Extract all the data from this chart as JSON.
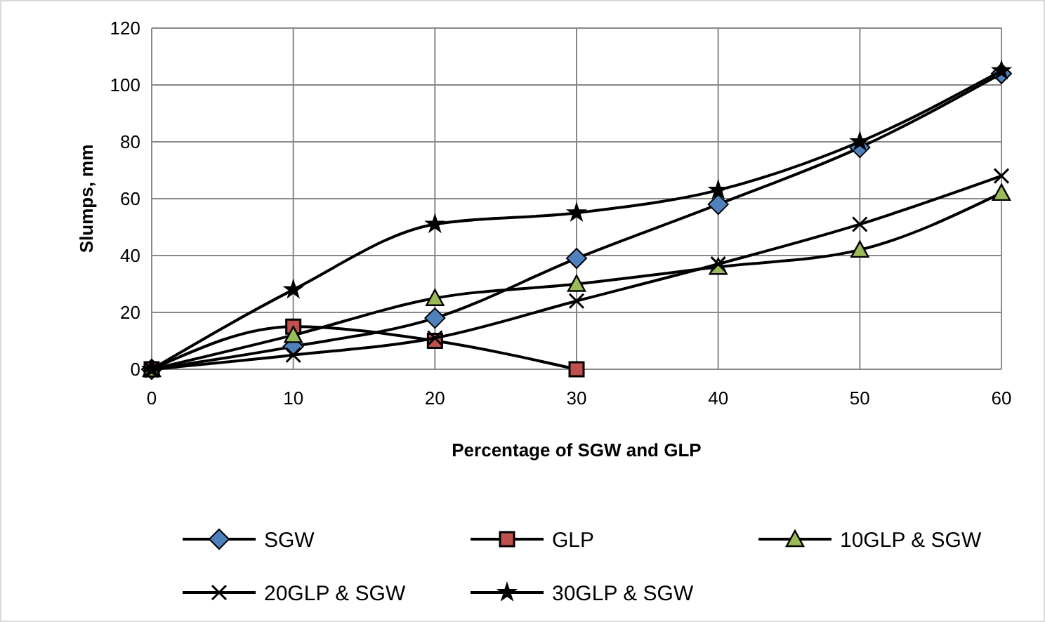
{
  "chart_data": {
    "type": "line",
    "xlabel": "Percentage of SGW and GLP",
    "ylabel": "Slumps, mm",
    "x": [
      0,
      10,
      20,
      30,
      40,
      50,
      60
    ],
    "series": [
      {
        "name": "SGW",
        "color": "#4f81bd",
        "marker": "diamond",
        "values": [
          0,
          8,
          18,
          39,
          58,
          78,
          104
        ]
      },
      {
        "name": "GLP",
        "color": "#c0504d",
        "marker": "square",
        "values": [
          0,
          15,
          10,
          0,
          null,
          null,
          null
        ]
      },
      {
        "name": "10GLP & SGW",
        "color": "#9bbb59",
        "marker": "triangle",
        "values": [
          0,
          12,
          25,
          30,
          36,
          42,
          62
        ]
      },
      {
        "name": "20GLP & SGW",
        "color": "#000000",
        "marker": "cross",
        "values": [
          0,
          5,
          11,
          24,
          37,
          51,
          68
        ]
      },
      {
        "name": "30GLP & SGW",
        "color": "#000000",
        "marker": "star",
        "values": [
          0,
          28,
          51,
          55,
          63,
          80,
          105
        ]
      }
    ],
    "xlim": [
      0,
      60
    ],
    "xticks": [
      0,
      10,
      20,
      30,
      40,
      50,
      60
    ],
    "ylim": [
      0,
      120
    ],
    "yticks": [
      0,
      20,
      40,
      60,
      80,
      100,
      120
    ],
    "grid": true,
    "legend": "bottom"
  }
}
